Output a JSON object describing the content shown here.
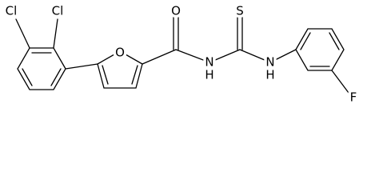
{
  "atoms": [
    {
      "label": "Cl"
    },
    {
      "label": "Cl"
    },
    {
      "label": "O"
    },
    {
      "label": "O"
    },
    {
      "label": "N"
    },
    {
      "label": "H"
    },
    {
      "label": "S"
    },
    {
      "label": "N"
    },
    {
      "label": "H"
    },
    {
      "label": "F"
    }
  ]
}
